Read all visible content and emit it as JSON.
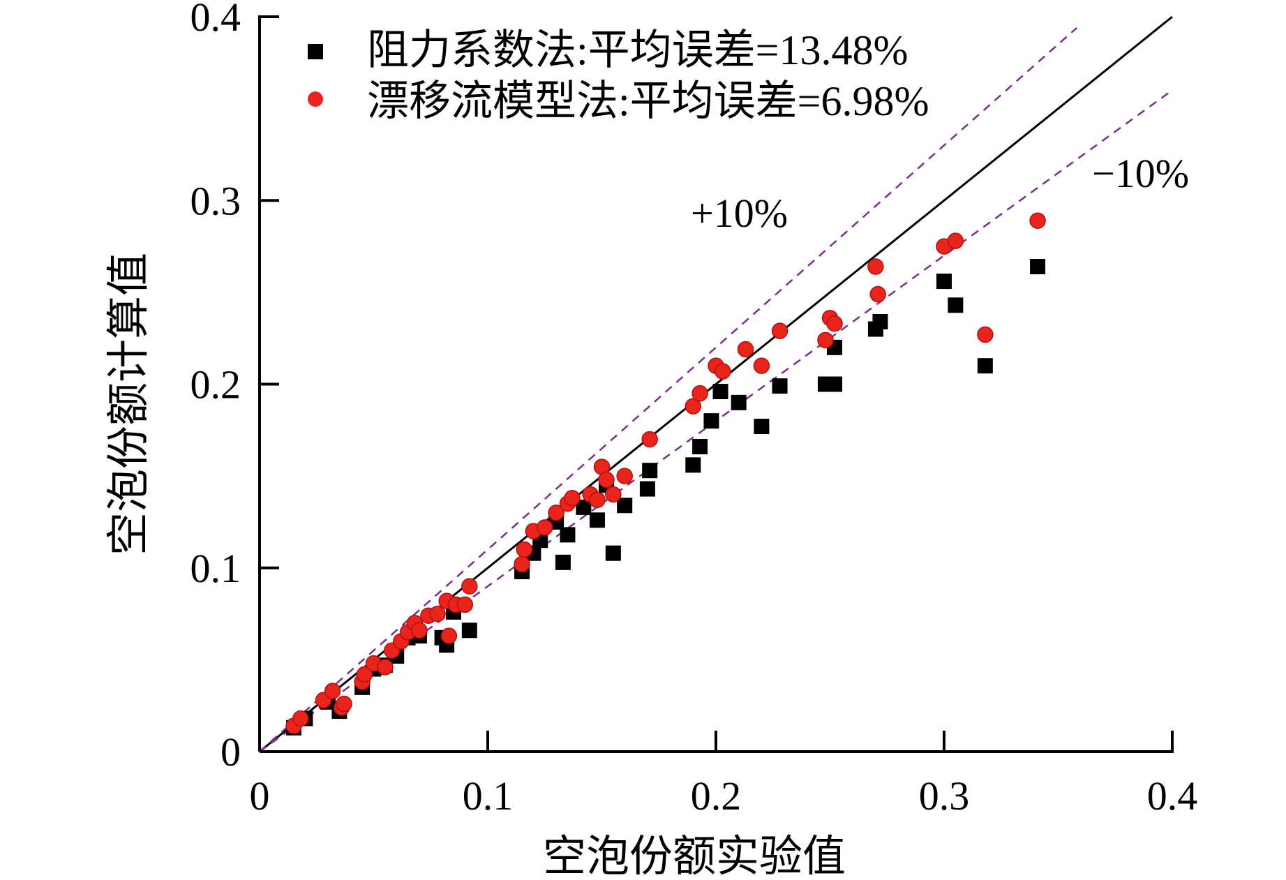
{
  "chart_data": {
    "type": "scatter",
    "title": "",
    "xlabel": "空泡份额实验值",
    "ylabel": "空泡份额计算值",
    "xlim": [
      0,
      0.4
    ],
    "ylim": [
      0,
      0.4
    ],
    "xticks": [
      "0",
      "0.1",
      "0.2",
      "0.3",
      "0.4"
    ],
    "yticks": [
      "0",
      "0.1",
      "0.2",
      "0.3",
      "0.4"
    ],
    "xtick_values": [
      0,
      0.1,
      0.2,
      0.3,
      0.4
    ],
    "ytick_values": [
      0,
      0.1,
      0.2,
      0.3,
      0.4
    ],
    "grid": false,
    "legend_position": "top-left",
    "reference_lines": [
      {
        "name": "y=x",
        "slope": 1.0,
        "style": "solid",
        "color": "#000000",
        "label": ""
      },
      {
        "name": "+10%",
        "slope": 1.1,
        "style": "dashed",
        "color": "#7a2f8c",
        "label": "+10%"
      },
      {
        "name": "-10%",
        "slope": 0.9,
        "style": "dashed",
        "color": "#7a2f8c",
        "label": "−10%"
      }
    ],
    "series": [
      {
        "name": "阻力系数法:平均误差=13.48%",
        "marker": "square",
        "color": "#000000",
        "points": [
          [
            0.015,
            0.013
          ],
          [
            0.02,
            0.018
          ],
          [
            0.03,
            0.027
          ],
          [
            0.035,
            0.022
          ],
          [
            0.045,
            0.035
          ],
          [
            0.05,
            0.045
          ],
          [
            0.055,
            0.047
          ],
          [
            0.06,
            0.052
          ],
          [
            0.065,
            0.062
          ],
          [
            0.07,
            0.063
          ],
          [
            0.08,
            0.062
          ],
          [
            0.082,
            0.058
          ],
          [
            0.085,
            0.076
          ],
          [
            0.092,
            0.066
          ],
          [
            0.115,
            0.098
          ],
          [
            0.12,
            0.108
          ],
          [
            0.123,
            0.115
          ],
          [
            0.133,
            0.103
          ],
          [
            0.135,
            0.118
          ],
          [
            0.13,
            0.125
          ],
          [
            0.142,
            0.133
          ],
          [
            0.148,
            0.126
          ],
          [
            0.152,
            0.145
          ],
          [
            0.155,
            0.108
          ],
          [
            0.16,
            0.134
          ],
          [
            0.17,
            0.143
          ],
          [
            0.171,
            0.153
          ],
          [
            0.19,
            0.156
          ],
          [
            0.193,
            0.166
          ],
          [
            0.198,
            0.18
          ],
          [
            0.202,
            0.196
          ],
          [
            0.21,
            0.19
          ],
          [
            0.22,
            0.177
          ],
          [
            0.228,
            0.199
          ],
          [
            0.248,
            0.2
          ],
          [
            0.252,
            0.2
          ],
          [
            0.252,
            0.22
          ],
          [
            0.27,
            0.23
          ],
          [
            0.272,
            0.234
          ],
          [
            0.3,
            0.256
          ],
          [
            0.305,
            0.243
          ],
          [
            0.318,
            0.21
          ],
          [
            0.341,
            0.264
          ]
        ]
      },
      {
        "name": "漂移流模型法:平均误差=6.98%",
        "marker": "circle",
        "color": "#e8241c",
        "points": [
          [
            0.015,
            0.014
          ],
          [
            0.018,
            0.018
          ],
          [
            0.028,
            0.028
          ],
          [
            0.032,
            0.033
          ],
          [
            0.036,
            0.024
          ],
          [
            0.037,
            0.026
          ],
          [
            0.045,
            0.038
          ],
          [
            0.046,
            0.042
          ],
          [
            0.05,
            0.048
          ],
          [
            0.055,
            0.046
          ],
          [
            0.058,
            0.055
          ],
          [
            0.062,
            0.06
          ],
          [
            0.065,
            0.065
          ],
          [
            0.068,
            0.07
          ],
          [
            0.07,
            0.066
          ],
          [
            0.074,
            0.074
          ],
          [
            0.078,
            0.075
          ],
          [
            0.082,
            0.082
          ],
          [
            0.083,
            0.063
          ],
          [
            0.086,
            0.08
          ],
          [
            0.09,
            0.08
          ],
          [
            0.092,
            0.09
          ],
          [
            0.115,
            0.102
          ],
          [
            0.116,
            0.11
          ],
          [
            0.12,
            0.12
          ],
          [
            0.125,
            0.122
          ],
          [
            0.13,
            0.13
          ],
          [
            0.135,
            0.135
          ],
          [
            0.137,
            0.138
          ],
          [
            0.145,
            0.14
          ],
          [
            0.148,
            0.137
          ],
          [
            0.15,
            0.155
          ],
          [
            0.152,
            0.148
          ],
          [
            0.155,
            0.14
          ],
          [
            0.16,
            0.15
          ],
          [
            0.171,
            0.17
          ],
          [
            0.19,
            0.188
          ],
          [
            0.193,
            0.195
          ],
          [
            0.2,
            0.21
          ],
          [
            0.203,
            0.207
          ],
          [
            0.213,
            0.219
          ],
          [
            0.22,
            0.21
          ],
          [
            0.228,
            0.229
          ],
          [
            0.248,
            0.224
          ],
          [
            0.25,
            0.236
          ],
          [
            0.252,
            0.233
          ],
          [
            0.27,
            0.264
          ],
          [
            0.271,
            0.249
          ],
          [
            0.3,
            0.275
          ],
          [
            0.305,
            0.278
          ],
          [
            0.318,
            0.227
          ],
          [
            0.341,
            0.289
          ]
        ]
      }
    ]
  }
}
